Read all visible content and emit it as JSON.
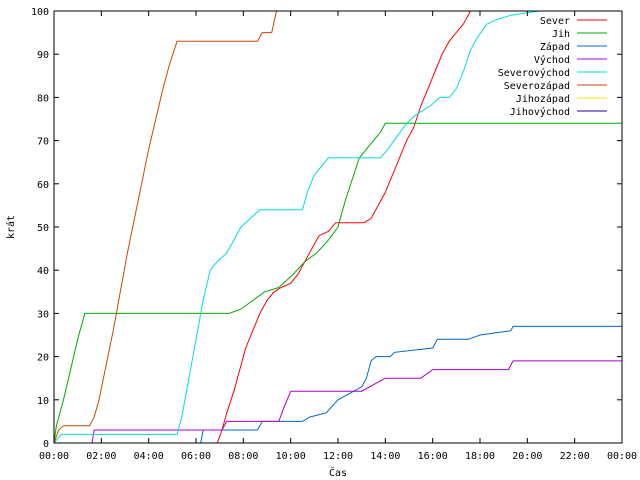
{
  "chart_data": {
    "type": "line",
    "xlabel": "Čas",
    "ylabel": "krát",
    "xlim": [
      0,
      24
    ],
    "ylim": [
      0,
      100
    ],
    "x_ticks": [
      {
        "value": 0,
        "label": "00:00"
      },
      {
        "value": 2,
        "label": "02:00"
      },
      {
        "value": 4,
        "label": "04:00"
      },
      {
        "value": 6,
        "label": "06:00"
      },
      {
        "value": 8,
        "label": "08:00"
      },
      {
        "value": 10,
        "label": "10:00"
      },
      {
        "value": 12,
        "label": "12:00"
      },
      {
        "value": 14,
        "label": "14:00"
      },
      {
        "value": 16,
        "label": "16:00"
      },
      {
        "value": 18,
        "label": "18:00"
      },
      {
        "value": 20,
        "label": "20:00"
      },
      {
        "value": 22,
        "label": "22:00"
      },
      {
        "value": 24,
        "label": "00:00"
      }
    ],
    "y_ticks": [
      0,
      10,
      20,
      30,
      40,
      50,
      60,
      70,
      80,
      90,
      100
    ],
    "grid": false,
    "legend_position": "top-right",
    "series": [
      {
        "name": "Sever",
        "color": "#ff0000",
        "points": [
          [
            0,
            0
          ],
          [
            6.9,
            0
          ],
          [
            7.1,
            3
          ],
          [
            7.3,
            7
          ],
          [
            7.6,
            12
          ],
          [
            7.9,
            18
          ],
          [
            8.1,
            22
          ],
          [
            8.4,
            26
          ],
          [
            8.7,
            30
          ],
          [
            9.0,
            33
          ],
          [
            9.3,
            35
          ],
          [
            9.6,
            36
          ],
          [
            10.0,
            37
          ],
          [
            10.3,
            39
          ],
          [
            10.7,
            43
          ],
          [
            11.0,
            46
          ],
          [
            11.2,
            48
          ],
          [
            11.6,
            49
          ],
          [
            11.9,
            51
          ],
          [
            12.8,
            51
          ],
          [
            13.1,
            51
          ],
          [
            13.4,
            52
          ],
          [
            13.7,
            55
          ],
          [
            14.0,
            58
          ],
          [
            14.3,
            62
          ],
          [
            14.6,
            66
          ],
          [
            14.9,
            70
          ],
          [
            15.2,
            73
          ],
          [
            15.5,
            78
          ],
          [
            15.8,
            82
          ],
          [
            16.1,
            86
          ],
          [
            16.4,
            90
          ],
          [
            16.7,
            93
          ],
          [
            17.0,
            95
          ],
          [
            17.3,
            97
          ],
          [
            17.6,
            100
          ]
        ]
      },
      {
        "name": "Jih",
        "color": "#00aa00",
        "points": [
          [
            0,
            0
          ],
          [
            0.1,
            4
          ],
          [
            0.4,
            10
          ],
          [
            0.7,
            17
          ],
          [
            1.0,
            24
          ],
          [
            1.3,
            30
          ],
          [
            7.4,
            30
          ],
          [
            7.9,
            31
          ],
          [
            8.4,
            33
          ],
          [
            8.9,
            35
          ],
          [
            9.5,
            36
          ],
          [
            10.1,
            39
          ],
          [
            10.6,
            42
          ],
          [
            11.1,
            44
          ],
          [
            11.6,
            47
          ],
          [
            12.0,
            50
          ],
          [
            12.3,
            56
          ],
          [
            12.6,
            61
          ],
          [
            12.9,
            66
          ],
          [
            13.2,
            68
          ],
          [
            13.5,
            70
          ],
          [
            13.8,
            72
          ],
          [
            14.0,
            74
          ],
          [
            24.0,
            74
          ]
        ]
      },
      {
        "name": "Západ",
        "color": "#0066cc",
        "points": [
          [
            0,
            0
          ],
          [
            6.2,
            0
          ],
          [
            6.3,
            3
          ],
          [
            7.5,
            3
          ],
          [
            8.2,
            3
          ],
          [
            8.6,
            3
          ],
          [
            8.8,
            5
          ],
          [
            10.5,
            5
          ],
          [
            10.8,
            6
          ],
          [
            11.5,
            7
          ],
          [
            12.0,
            10
          ],
          [
            13.0,
            13
          ],
          [
            13.2,
            15
          ],
          [
            13.4,
            19
          ],
          [
            13.6,
            20
          ],
          [
            14.2,
            20
          ],
          [
            14.4,
            21
          ],
          [
            16.0,
            22
          ],
          [
            16.2,
            24
          ],
          [
            17.5,
            24
          ],
          [
            18.0,
            25
          ],
          [
            19.3,
            26
          ],
          [
            19.4,
            27
          ],
          [
            24.0,
            27
          ]
        ]
      },
      {
        "name": "Východ",
        "color": "#aa00cc",
        "points": [
          [
            0,
            0
          ],
          [
            1.6,
            0
          ],
          [
            1.7,
            3
          ],
          [
            7.1,
            3
          ],
          [
            7.3,
            5
          ],
          [
            9.5,
            5
          ],
          [
            9.7,
            8
          ],
          [
            10.0,
            12
          ],
          [
            13.0,
            12
          ],
          [
            14.0,
            15
          ],
          [
            15.5,
            15
          ],
          [
            16.0,
            17
          ],
          [
            19.2,
            17
          ],
          [
            19.4,
            19
          ],
          [
            24.0,
            19
          ]
        ]
      },
      {
        "name": "Severovýchod",
        "color": "#00dddd",
        "points": [
          [
            0,
            0
          ],
          [
            0.3,
            2
          ],
          [
            5.2,
            2
          ],
          [
            5.4,
            6
          ],
          [
            5.7,
            15
          ],
          [
            6.0,
            24
          ],
          [
            6.3,
            33
          ],
          [
            6.6,
            40
          ],
          [
            6.9,
            42
          ],
          [
            7.3,
            44
          ],
          [
            7.6,
            47
          ],
          [
            7.9,
            50
          ],
          [
            8.3,
            52
          ],
          [
            8.7,
            54
          ],
          [
            10.5,
            54
          ],
          [
            10.7,
            58
          ],
          [
            11.0,
            62
          ],
          [
            11.3,
            64
          ],
          [
            11.6,
            66
          ],
          [
            13.8,
            66
          ],
          [
            14.1,
            68
          ],
          [
            14.5,
            71
          ],
          [
            14.9,
            74
          ],
          [
            15.3,
            76
          ],
          [
            15.9,
            78
          ],
          [
            16.3,
            80
          ],
          [
            16.7,
            80
          ],
          [
            17.0,
            82
          ],
          [
            17.3,
            86
          ],
          [
            17.6,
            91
          ],
          [
            17.9,
            94
          ],
          [
            18.3,
            97
          ],
          [
            18.7,
            98
          ],
          [
            19.3,
            99
          ],
          [
            20.5,
            100
          ],
          [
            24.0,
            100
          ]
        ]
      },
      {
        "name": "Severozápad",
        "color": "#cc4400",
        "points": [
          [
            0,
            0
          ],
          [
            0.2,
            3
          ],
          [
            0.4,
            4
          ],
          [
            1.5,
            4
          ],
          [
            1.7,
            6
          ],
          [
            1.9,
            10
          ],
          [
            2.2,
            18
          ],
          [
            2.5,
            26
          ],
          [
            2.8,
            35
          ],
          [
            3.1,
            44
          ],
          [
            3.4,
            52
          ],
          [
            3.7,
            60
          ],
          [
            4.0,
            68
          ],
          [
            4.3,
            75
          ],
          [
            4.6,
            82
          ],
          [
            4.9,
            88
          ],
          [
            5.2,
            93
          ],
          [
            8.6,
            93
          ],
          [
            8.8,
            95
          ],
          [
            9.2,
            95
          ],
          [
            9.4,
            100
          ]
        ]
      },
      {
        "name": "Jihozápad",
        "color": "#ffdd00",
        "points": []
      },
      {
        "name": "Jihovýchod",
        "color": "#2200aa",
        "points": []
      }
    ]
  }
}
